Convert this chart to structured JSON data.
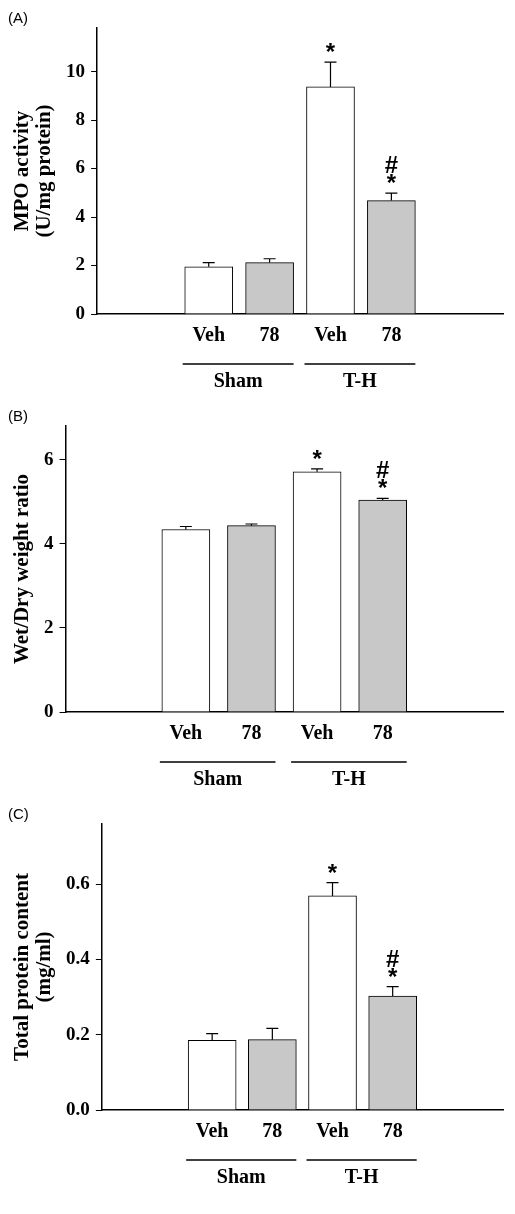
{
  "chart_data": [
    {
      "type": "bar",
      "title": "(A)",
      "ylabel": "MPO activity\n(U/mg protein)",
      "categories": [
        "Veh",
        "78",
        "Veh",
        "78"
      ],
      "values": [
        1.95,
        2.12,
        9.37,
        4.68
      ],
      "errors": [
        0.17,
        0.16,
        1.02,
        0.31
      ],
      "colors": [
        "#ffffff",
        "#c8c8c8",
        "#ffffff",
        "#c8c8c8"
      ],
      "value_labels": [
        null,
        null,
        "*",
        "#\n*"
      ],
      "annotations": [
        "Sham",
        "T-H"
      ],
      "ylim": [
        0,
        11.8
      ],
      "yticks": [
        0,
        2,
        4,
        6,
        8,
        10
      ],
      "grid": false
    },
    {
      "type": "bar",
      "title": "(B)",
      "ylabel": "Wet/Dry weight ratio",
      "categories": [
        "Veh",
        "78",
        "Veh",
        "78"
      ],
      "values": [
        4.34,
        4.43,
        5.71,
        5.04
      ],
      "errors": [
        0.07,
        0.04,
        0.07,
        0.04
      ],
      "colors": [
        "#ffffff",
        "#c8c8c8",
        "#ffffff",
        "#c8c8c8"
      ],
      "value_labels": [
        null,
        null,
        "*",
        "#\n*"
      ],
      "annotations": [
        "Sham",
        "T-H"
      ],
      "ylim": [
        0,
        6.8
      ],
      "yticks": [
        0,
        2,
        4,
        6
      ],
      "grid": false
    },
    {
      "type": "bar",
      "title": "(C)",
      "ylabel": "Total protein content\n(mg/ml)",
      "categories": [
        "Veh",
        "78",
        "Veh",
        "78"
      ],
      "values": [
        0.185,
        0.187,
        0.569,
        0.303
      ],
      "errors": [
        0.018,
        0.03,
        0.035,
        0.025
      ],
      "colors": [
        "#ffffff",
        "#c8c8c8",
        "#ffffff",
        "#c8c8c8"
      ],
      "value_labels": [
        null,
        null,
        "*",
        "#\n*"
      ],
      "annotations": [
        "Sham",
        "T-H"
      ],
      "ylim": [
        0,
        0.76
      ],
      "yticks": [
        {
          "value": 0,
          "label": "0.0"
        },
        0.2,
        0.4,
        0.6
      ],
      "grid": false
    }
  ]
}
